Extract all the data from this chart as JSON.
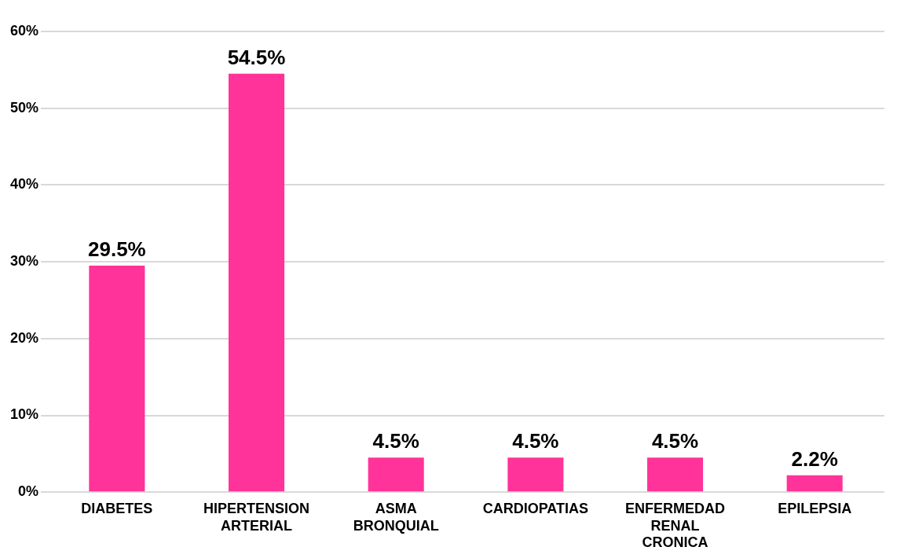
{
  "chart_data": {
    "type": "bar",
    "categories": [
      "DIABETES",
      "HIPERTENSION ARTERIAL",
      "ASMA BRONQUIAL",
      "CARDIOPATIAS",
      "ENFERMEDAD RENAL CRONICA",
      "EPILEPSIA"
    ],
    "values": [
      29.5,
      54.5,
      4.5,
      4.5,
      4.5,
      2.2
    ],
    "value_labels": [
      "29.5%",
      "54.5%",
      "4.5%",
      "4.5%",
      "4.5%",
      "2.2%"
    ],
    "color": "#ff3399",
    "ylim": [
      0,
      60
    ],
    "yticks": [
      {
        "value": 0,
        "label": "0%"
      },
      {
        "value": 10,
        "label": "10%"
      },
      {
        "value": 20,
        "label": "20%"
      },
      {
        "value": 30,
        "label": "30%"
      },
      {
        "value": 40,
        "label": "40%"
      },
      {
        "value": 50,
        "label": "50%"
      },
      {
        "value": 60,
        "label": "60%"
      }
    ],
    "grid": "y"
  }
}
